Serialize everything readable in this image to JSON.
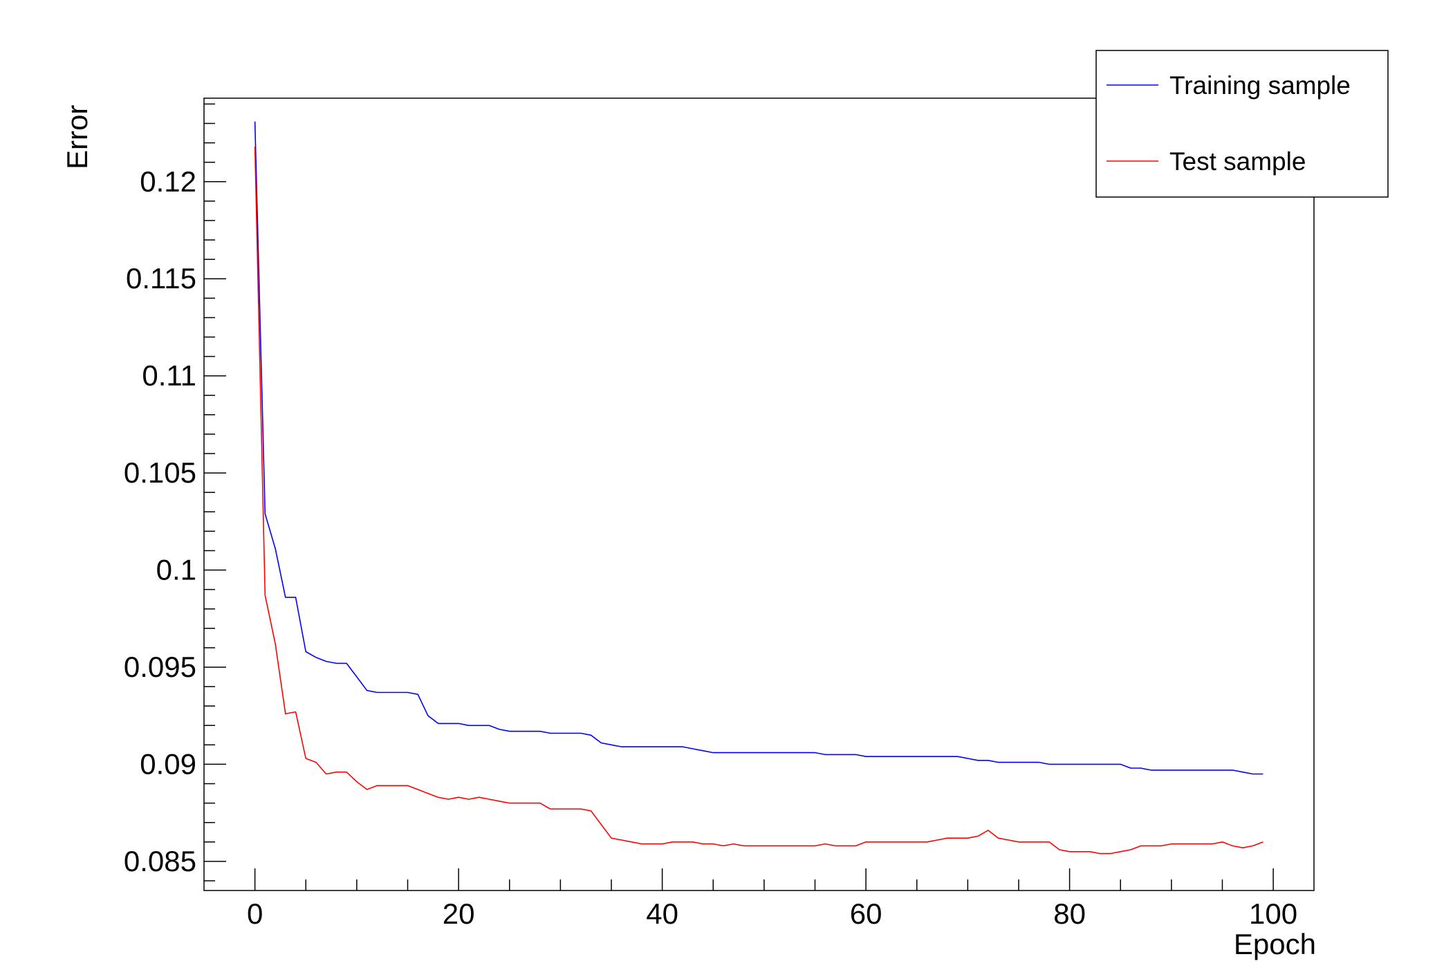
{
  "chart_data": {
    "type": "line",
    "title": "",
    "xlabel": "Epoch",
    "ylabel": "Error",
    "xlim": [
      -5,
      104
    ],
    "ylim": [
      0.0835,
      0.1243
    ],
    "xticks": [
      0,
      20,
      40,
      60,
      80,
      100
    ],
    "xtick_labels": [
      "0",
      "20",
      "40",
      "60",
      "80",
      "100"
    ],
    "yticks": [
      0.085,
      0.09,
      0.095,
      0.1,
      0.105,
      0.11,
      0.115,
      0.12
    ],
    "ytick_labels": [
      "0.085",
      "0.09",
      "0.095",
      "0.1",
      "0.105",
      "0.11",
      "0.115",
      "0.12"
    ],
    "grid": false,
    "legend_position": "top-right",
    "x": [
      0,
      1,
      2,
      3,
      4,
      5,
      6,
      7,
      8,
      9,
      10,
      11,
      12,
      13,
      14,
      15,
      16,
      17,
      18,
      19,
      20,
      21,
      22,
      23,
      24,
      25,
      26,
      27,
      28,
      29,
      30,
      31,
      32,
      33,
      34,
      35,
      36,
      37,
      38,
      39,
      40,
      41,
      42,
      43,
      44,
      45,
      46,
      47,
      48,
      49,
      50,
      51,
      52,
      53,
      54,
      55,
      56,
      57,
      58,
      59,
      60,
      61,
      62,
      63,
      64,
      65,
      66,
      67,
      68,
      69,
      70,
      71,
      72,
      73,
      74,
      75,
      76,
      77,
      78,
      79,
      80,
      81,
      82,
      83,
      84,
      85,
      86,
      87,
      88,
      89,
      90,
      91,
      92,
      93,
      94,
      95,
      96,
      97,
      98,
      99
    ],
    "series": [
      {
        "name": "Training sample",
        "color": "#0000ff",
        "values": [
          0.1231,
          0.1029,
          0.1011,
          0.0986,
          0.0986,
          0.0958,
          0.0955,
          0.0953,
          0.0952,
          0.0952,
          0.0945,
          0.0938,
          0.0937,
          0.0937,
          0.0937,
          0.0937,
          0.0936,
          0.0925,
          0.0921,
          0.0921,
          0.0921,
          0.092,
          0.092,
          0.092,
          0.0918,
          0.0917,
          0.0917,
          0.0917,
          0.0917,
          0.0916,
          0.0916,
          0.0916,
          0.0916,
          0.0915,
          0.0911,
          0.091,
          0.0909,
          0.0909,
          0.0909,
          0.0909,
          0.0909,
          0.0909,
          0.0909,
          0.0908,
          0.0907,
          0.0906,
          0.0906,
          0.0906,
          0.0906,
          0.0906,
          0.0906,
          0.0906,
          0.0906,
          0.0906,
          0.0906,
          0.0906,
          0.0905,
          0.0905,
          0.0905,
          0.0905,
          0.0904,
          0.0904,
          0.0904,
          0.0904,
          0.0904,
          0.0904,
          0.0904,
          0.0904,
          0.0904,
          0.0904,
          0.0903,
          0.0902,
          0.0902,
          0.0901,
          0.0901,
          0.0901,
          0.0901,
          0.0901,
          0.09,
          0.09,
          0.09,
          0.09,
          0.09,
          0.09,
          0.09,
          0.09,
          0.0898,
          0.0898,
          0.0897,
          0.0897,
          0.0897,
          0.0897,
          0.0897,
          0.0897,
          0.0897,
          0.0897,
          0.0897,
          0.0896,
          0.0895,
          0.0895
        ]
      },
      {
        "name": "Test sample",
        "color": "#ff0000",
        "values": [
          0.1218,
          0.0987,
          0.0962,
          0.0926,
          0.0927,
          0.0903,
          0.0901,
          0.0895,
          0.0896,
          0.0896,
          0.0891,
          0.0887,
          0.0889,
          0.0889,
          0.0889,
          0.0889,
          0.0887,
          0.0885,
          0.0883,
          0.0882,
          0.0883,
          0.0882,
          0.0883,
          0.0882,
          0.0881,
          0.088,
          0.088,
          0.088,
          0.088,
          0.0877,
          0.0877,
          0.0877,
          0.0877,
          0.0876,
          0.0869,
          0.0862,
          0.0861,
          0.086,
          0.0859,
          0.0859,
          0.0859,
          0.086,
          0.086,
          0.086,
          0.0859,
          0.0859,
          0.0858,
          0.0859,
          0.0858,
          0.0858,
          0.0858,
          0.0858,
          0.0858,
          0.0858,
          0.0858,
          0.0858,
          0.0859,
          0.0858,
          0.0858,
          0.0858,
          0.086,
          0.086,
          0.086,
          0.086,
          0.086,
          0.086,
          0.086,
          0.0861,
          0.0862,
          0.0862,
          0.0862,
          0.0863,
          0.0866,
          0.0862,
          0.0861,
          0.086,
          0.086,
          0.086,
          0.086,
          0.0856,
          0.0855,
          0.0855,
          0.0855,
          0.0854,
          0.0854,
          0.0855,
          0.0856,
          0.0858,
          0.0858,
          0.0858,
          0.0859,
          0.0859,
          0.0859,
          0.0859,
          0.0859,
          0.086,
          0.0858,
          0.0857,
          0.0858,
          0.086
        ]
      }
    ]
  }
}
